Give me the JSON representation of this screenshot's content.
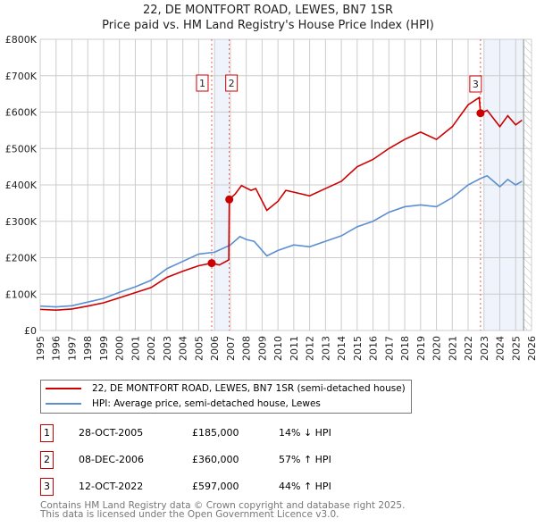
{
  "chart_data": {
    "type": "line",
    "title": "22, DE MONTFORT ROAD, LEWES, BN7 1SR",
    "subtitle": "Price paid vs. HM Land Registry's House Price Index (HPI)",
    "xlim": [
      1995,
      2026
    ],
    "ylim": [
      0,
      800000
    ],
    "yticks": [
      "£0",
      "£100K",
      "£200K",
      "£300K",
      "£400K",
      "£500K",
      "£600K",
      "£700K",
      "£800K"
    ],
    "xticks": [
      "1995",
      "1996",
      "1997",
      "1998",
      "1999",
      "2000",
      "2001",
      "2002",
      "2003",
      "2004",
      "2005",
      "2006",
      "2007",
      "2008",
      "2009",
      "2010",
      "2011",
      "2012",
      "2013",
      "2014",
      "2015",
      "2016",
      "2017",
      "2018",
      "2019",
      "2020",
      "2021",
      "2022",
      "2023",
      "2024",
      "2025",
      "2026"
    ],
    "series": [
      {
        "name": "22, DE MONTFORT ROAD, LEWES, BN7 1SR (semi-detached house)",
        "color": "#cc0000",
        "x": [
          1995,
          1996,
          1997,
          1998,
          1999,
          2000,
          2001,
          2002,
          2003,
          2004,
          2005,
          2005.82,
          2006.3,
          2006.9,
          2006.93,
          2007.3,
          2007.7,
          2008.3,
          2008.6,
          2009.3,
          2010,
          2010.5,
          2011,
          2012,
          2013,
          2014,
          2015,
          2016,
          2017,
          2018,
          2019,
          2020,
          2021,
          2022,
          2022.7,
          2022.78,
          2023.2,
          2024,
          2024.5,
          2025,
          2025.4
        ],
        "y": [
          58000,
          56000,
          59000,
          67000,
          76000,
          90000,
          104000,
          118000,
          146000,
          163000,
          178000,
          185000,
          180000,
          194000,
          360000,
          375000,
          398000,
          385000,
          390000,
          330000,
          355000,
          385000,
          380000,
          370000,
          390000,
          410000,
          450000,
          470000,
          500000,
          525000,
          545000,
          525000,
          560000,
          620000,
          640000,
          597000,
          605000,
          560000,
          590000,
          565000,
          578000
        ]
      },
      {
        "name": "HPI: Average price, semi-detached house, Lewes",
        "color": "#5b8fd0",
        "x": [
          1995,
          1996,
          1997,
          1998,
          1999,
          2000,
          2001,
          2002,
          2003,
          2004,
          2005,
          2006,
          2006.5,
          2007,
          2007.6,
          2008,
          2008.5,
          2009.3,
          2010,
          2011,
          2012,
          2013,
          2014,
          2015,
          2016,
          2017,
          2018,
          2019,
          2020,
          2021,
          2022,
          2022.8,
          2023.2,
          2024,
          2024.5,
          2025,
          2025.4
        ],
        "y": [
          67000,
          65000,
          68000,
          78000,
          88000,
          105000,
          120000,
          138000,
          170000,
          190000,
          210000,
          215000,
          225000,
          235000,
          258000,
          250000,
          245000,
          205000,
          220000,
          235000,
          230000,
          245000,
          260000,
          285000,
          300000,
          325000,
          340000,
          345000,
          340000,
          365000,
          400000,
          418000,
          425000,
          395000,
          415000,
          400000,
          410000
        ]
      }
    ],
    "sales": [
      {
        "label": "1",
        "x": 2005.82,
        "y": 185000
      },
      {
        "label": "2",
        "x": 2006.93,
        "y": 360000
      },
      {
        "label": "3",
        "x": 2022.78,
        "y": 597000
      }
    ]
  },
  "legend": {
    "red": "22, DE MONTFORT ROAD, LEWES, BN7 1SR (semi-detached house)",
    "blue": "HPI: Average price, semi-detached house, Lewes"
  },
  "transactions": [
    {
      "num": "1",
      "date": "28-OCT-2005",
      "price": "£185,000",
      "hpi": "14% ↓ HPI"
    },
    {
      "num": "2",
      "date": "08-DEC-2006",
      "price": "£360,000",
      "hpi": "57% ↑ HPI"
    },
    {
      "num": "3",
      "date": "12-OCT-2022",
      "price": "£597,000",
      "hpi": "44% ↑ HPI"
    }
  ],
  "footer": {
    "line1": "Contains HM Land Registry data © Crown copyright and database right 2025.",
    "line2": "This data is licensed under the Open Government Licence v3.0."
  }
}
